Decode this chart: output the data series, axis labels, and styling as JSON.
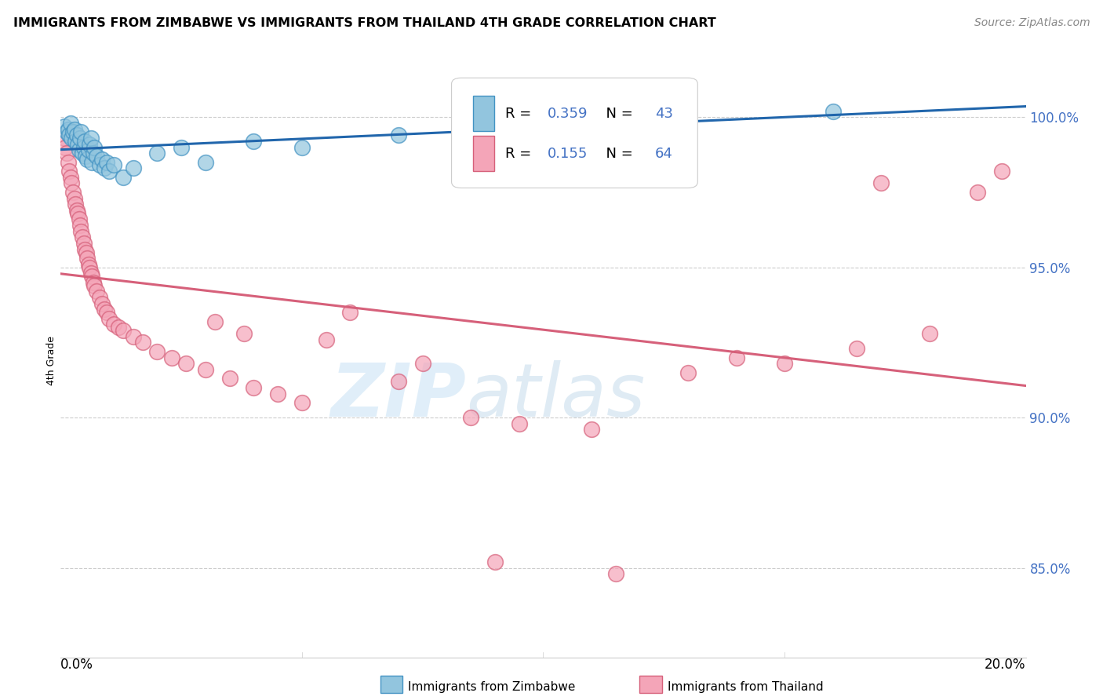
{
  "title": "IMMIGRANTS FROM ZIMBABWE VS IMMIGRANTS FROM THAILAND 4TH GRADE CORRELATION CHART",
  "source": "Source: ZipAtlas.com",
  "ylabel": "4th Grade",
  "watermark_zip": "ZIP",
  "watermark_atlas": "atlas",
  "xlim": [
    0.0,
    20.0
  ],
  "ylim": [
    82.0,
    101.8
  ],
  "yticks": [
    85.0,
    90.0,
    95.0,
    100.0
  ],
  "ytick_labels": [
    "85.0%",
    "90.0%",
    "95.0%",
    "100.0%"
  ],
  "legend_r1_val": "0.359",
  "legend_n1_val": "43",
  "legend_r2_val": "0.155",
  "legend_n2_val": "64",
  "zimbabwe_color": "#92c5de",
  "zimbabwe_edge": "#4393c3",
  "thailand_color": "#f4a5b8",
  "thailand_edge": "#d6607a",
  "trendline_zimbabwe_color": "#2166ac",
  "trendline_thailand_color": "#d6607a",
  "zimbabwe_x": [
    0.08,
    0.12,
    0.15,
    0.18,
    0.2,
    0.22,
    0.25,
    0.28,
    0.3,
    0.33,
    0.35,
    0.38,
    0.4,
    0.42,
    0.45,
    0.48,
    0.5,
    0.52,
    0.55,
    0.58,
    0.6,
    0.63,
    0.65,
    0.68,
    0.7,
    0.75,
    0.8,
    0.85,
    0.9,
    0.95,
    1.0,
    1.1,
    1.3,
    1.5,
    2.0,
    2.5,
    3.0,
    4.0,
    5.0,
    7.0,
    10.0,
    13.0,
    16.0
  ],
  "zimbabwe_y": [
    99.7,
    99.5,
    99.6,
    99.4,
    99.8,
    99.3,
    99.5,
    99.6,
    99.2,
    99.4,
    99.1,
    98.9,
    99.3,
    99.5,
    98.8,
    99.0,
    99.2,
    98.7,
    98.6,
    98.9,
    99.1,
    99.3,
    98.5,
    98.8,
    99.0,
    98.7,
    98.4,
    98.6,
    98.3,
    98.5,
    98.2,
    98.4,
    98.0,
    98.3,
    98.8,
    99.0,
    98.5,
    99.2,
    99.0,
    99.4,
    100.0,
    100.1,
    100.2
  ],
  "thailand_x": [
    0.08,
    0.1,
    0.12,
    0.15,
    0.18,
    0.2,
    0.22,
    0.25,
    0.28,
    0.3,
    0.33,
    0.35,
    0.38,
    0.4,
    0.42,
    0.45,
    0.48,
    0.5,
    0.53,
    0.55,
    0.58,
    0.6,
    0.63,
    0.65,
    0.68,
    0.7,
    0.75,
    0.8,
    0.85,
    0.9,
    0.95,
    1.0,
    1.1,
    1.2,
    1.3,
    1.5,
    1.7,
    2.0,
    2.3,
    2.6,
    3.0,
    3.5,
    4.0,
    4.5,
    5.0,
    6.0,
    7.0,
    8.5,
    9.5,
    11.0,
    13.0,
    14.0,
    15.0,
    16.5,
    18.0,
    19.0,
    3.2,
    3.8,
    5.5,
    7.5,
    9.0,
    11.5,
    17.0,
    19.5
  ],
  "thailand_y": [
    99.3,
    99.0,
    98.8,
    98.5,
    98.2,
    98.0,
    97.8,
    97.5,
    97.3,
    97.1,
    96.9,
    96.8,
    96.6,
    96.4,
    96.2,
    96.0,
    95.8,
    95.6,
    95.5,
    95.3,
    95.1,
    95.0,
    94.8,
    94.7,
    94.5,
    94.4,
    94.2,
    94.0,
    93.8,
    93.6,
    93.5,
    93.3,
    93.1,
    93.0,
    92.9,
    92.7,
    92.5,
    92.2,
    92.0,
    91.8,
    91.6,
    91.3,
    91.0,
    90.8,
    90.5,
    93.5,
    91.2,
    90.0,
    89.8,
    89.6,
    91.5,
    92.0,
    91.8,
    92.3,
    92.8,
    97.5,
    93.2,
    92.8,
    92.6,
    91.8,
    85.2,
    84.8,
    97.8,
    98.2
  ]
}
